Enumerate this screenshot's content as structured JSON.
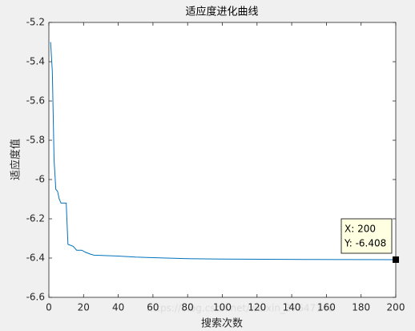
{
  "chart_data": {
    "type": "line",
    "title": "适应度进化曲线",
    "x_label": "搜索次数",
    "y_label": "适应度值",
    "x": [
      1,
      2,
      3,
      4,
      5,
      6,
      7,
      10,
      11,
      14,
      16,
      19,
      21,
      24,
      26,
      40,
      50,
      60,
      80,
      100,
      150,
      200
    ],
    "values": [
      -5.3,
      -5.45,
      -5.9,
      -6.05,
      -6.06,
      -6.1,
      -6.12,
      -6.12,
      -6.33,
      -6.34,
      -6.36,
      -6.36,
      -6.37,
      -6.38,
      -6.385,
      -6.39,
      -6.395,
      -6.398,
      -6.403,
      -6.405,
      -6.407,
      -6.408
    ],
    "color": "#0072bd",
    "xlim": [
      0,
      200
    ],
    "xticks": [
      0,
      20,
      40,
      60,
      80,
      100,
      120,
      140,
      160,
      180,
      200
    ],
    "ylim": [
      -6.6,
      -5.2
    ],
    "yticks": [
      -6.6,
      -6.4,
      -6.2,
      -6,
      -5.8,
      -5.6,
      -5.4,
      -5.2
    ],
    "datatip": {
      "x_text": "X: 200",
      "y_text": "Y: -6.408"
    },
    "watermark": "https://blog.csdn.net/weixin_37647148"
  }
}
